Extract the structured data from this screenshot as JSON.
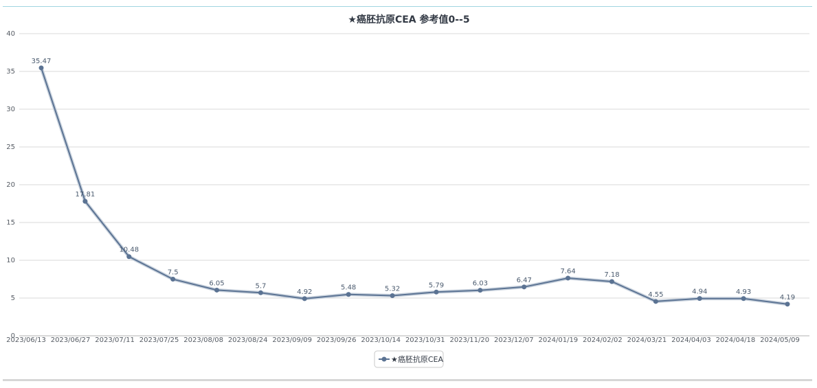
{
  "chart_data": {
    "type": "line",
    "title": "★癌胚抗原CEA 参考值0--5",
    "xlabel": "",
    "ylabel": "",
    "ylim": [
      0,
      40
    ],
    "yticks": [
      0,
      5,
      10,
      15,
      20,
      25,
      30,
      35,
      40
    ],
    "grid": true,
    "legend_position": "bottom-center",
    "categories": [
      "2023/06/13",
      "2023/06/27",
      "2023/07/11",
      "2023/07/25",
      "2023/08/08",
      "2023/08/24",
      "2023/09/09",
      "2023/09/26",
      "2023/10/14",
      "2023/10/31",
      "2023/11/20",
      "2023/12/07",
      "2024/01/19",
      "2024/02/02",
      "2024/03/21",
      "2024/04/03",
      "2024/04/18",
      "2024/05/09"
    ],
    "series": [
      {
        "name": "★癌胚抗原CEA",
        "color": "#5b7393",
        "values": [
          35.47,
          17.81,
          10.48,
          7.5,
          6.05,
          5.7,
          4.92,
          5.48,
          5.32,
          5.79,
          6.03,
          6.47,
          7.64,
          7.18,
          4.55,
          4.94,
          4.93,
          4.19
        ],
        "labels": [
          "35.47",
          "17.81",
          "10.48",
          "7.5",
          "6.05",
          "5.7",
          "4.92",
          "5.48",
          "5.32",
          "5.79",
          "6.03",
          "6.47",
          "7.64",
          "7.18",
          "4.55",
          "4.94",
          "4.93",
          "4.19"
        ]
      }
    ]
  }
}
